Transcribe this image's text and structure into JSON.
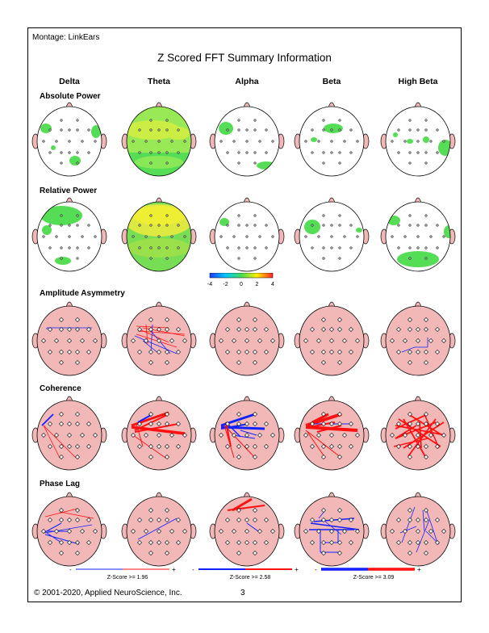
{
  "montage": "Montage:  LinkEars",
  "title": "Z Scored FFT Summary Information",
  "bands": [
    "Delta",
    "Theta",
    "Alpha",
    "Beta",
    "High Beta"
  ],
  "sections": {
    "absolute_power": "Absolute Power",
    "relative_power": "Relative Power",
    "amplitude_asymmetry": "Amplitude Asymmetry",
    "coherence": "Coherence",
    "phase_lag": "Phase Lag"
  },
  "colorbar": {
    "ticks": [
      "-4",
      "-2",
      "0",
      "2",
      "4"
    ],
    "colors": [
      "#1f3bff",
      "#00c8ff",
      "#44dd55",
      "#ffee00",
      "#ff2222"
    ]
  },
  "legends": [
    {
      "minus": "-",
      "plus": "+",
      "label": "Z-Score >= 1.96"
    },
    {
      "minus": "-",
      "plus": "+",
      "label": "Z-Score >= 2.58"
    },
    {
      "minus": "-",
      "plus": "+",
      "label": "Z-Score >= 3.09"
    }
  ],
  "footer": "© 2001-2020, Applied NeuroScience, Inc.",
  "page_number": "3",
  "colors": {
    "head_pink": "#f2b8b8",
    "blob_green": "#55dd55",
    "blob_yellow": "#eeee33",
    "line_red": "#ff1111",
    "line_blue": "#1122ff"
  }
}
